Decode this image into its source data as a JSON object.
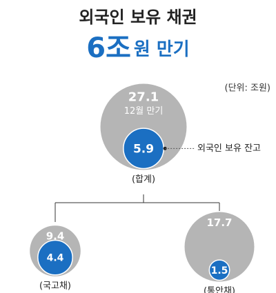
{
  "chart_data": {
    "type": "bubble",
    "title": "외국인 보유 채권",
    "subtitle_main": "6조",
    "subtitle_rest": "원 만기",
    "unit_note": "(단위: 조원)",
    "annotation": "외국인 보유 잔고",
    "total_color": "#b5b5b5",
    "foreign_color": "#1b6fc2",
    "groups": [
      {
        "label": "(합계)",
        "total": 27.1,
        "total_label": "12월 만기",
        "foreign": 5.9
      },
      {
        "label": "(국고채)",
        "total": 9.4,
        "foreign": 4.4
      },
      {
        "label": "(통안채)",
        "total": 17.7,
        "foreign": 1.5
      }
    ]
  }
}
